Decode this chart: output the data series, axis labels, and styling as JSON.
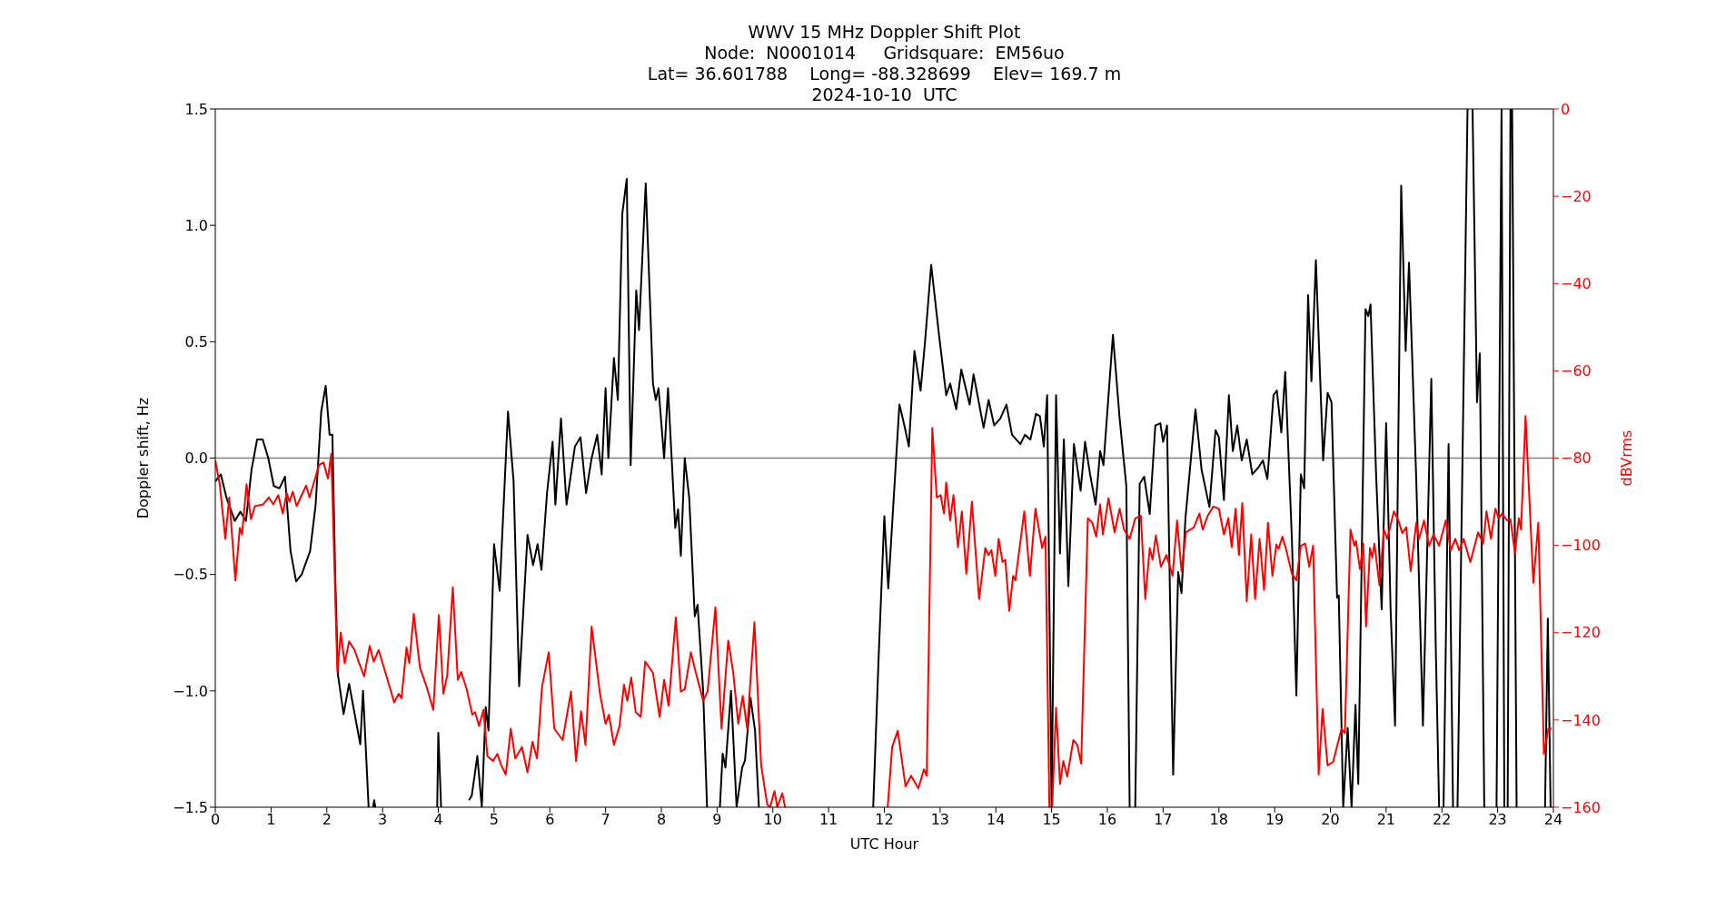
{
  "chart_data": {
    "type": "line",
    "title": "WWV 15 MHz Doppler Shift Plot",
    "subtitle": "Node:  N0001014     Gridsquare:  EM56uo\nLat= 36.601788    Long= -88.328699    Elev= 169.7 m\n2024-10-10  UTC",
    "xlabel": "UTC Hour",
    "ylabel": "Doppler shift, Hz",
    "y2label": "dBVrms",
    "xlim": [
      0,
      24
    ],
    "xticks": [
      0,
      1,
      2,
      3,
      4,
      5,
      6,
      7,
      8,
      9,
      10,
      11,
      12,
      13,
      14,
      15,
      16,
      17,
      18,
      19,
      20,
      21,
      22,
      23,
      24
    ],
    "ylim": [
      -1.5,
      1.5
    ],
    "yticks": [
      {
        "value": -1.5,
        "label": "−1.5"
      },
      {
        "value": -1.0,
        "label": "−1.0"
      },
      {
        "value": -0.5,
        "label": "−0.5"
      },
      {
        "value": 0,
        "label": "0.0"
      },
      {
        "value": 0.5,
        "label": "0.5"
      },
      {
        "value": 1.0,
        "label": "1.0"
      },
      {
        "value": 1.5,
        "label": "1.5"
      }
    ],
    "y2lim": [
      -160,
      0
    ],
    "y2ticks": [
      {
        "value": -160,
        "label": "−160"
      },
      {
        "value": -140,
        "label": "−140"
      },
      {
        "value": -120,
        "label": "−120"
      },
      {
        "value": -100,
        "label": "−100"
      },
      {
        "value": -80,
        "label": "−80"
      },
      {
        "value": -60,
        "label": "−60"
      },
      {
        "value": -40,
        "label": "−40"
      },
      {
        "value": -20,
        "label": "−20"
      },
      {
        "value": 0,
        "label": "0"
      }
    ],
    "ref_lines": [
      {
        "axis": "y",
        "value": 0,
        "color": "#808080"
      }
    ],
    "series": [
      {
        "color": "#000000",
        "x": [
          0,
          0.1,
          0.2,
          0.35,
          0.45,
          0.55,
          0.65,
          0.75,
          0.85,
          0.95,
          1.05,
          1.15,
          1.25,
          1.35,
          1.45,
          1.55,
          1.7,
          1.8,
          1.9,
          1.98,
          2.05,
          2.1,
          2.15,
          2.2,
          2.3,
          2.4,
          2.5,
          2.6,
          2.65,
          2.75,
          2.79,
          2.83,
          2.85,
          2.87,
          2.9,
          3.98,
          4.0,
          4.05,
          4.3,
          4.55,
          4.6,
          4.7,
          4.78,
          4.85,
          4.9,
          5.0,
          5.1,
          5.25,
          5.35,
          5.45,
          5.6,
          5.7,
          5.78,
          5.85,
          5.95,
          6.05,
          6.1,
          6.2,
          6.3,
          6.45,
          6.55,
          6.65,
          6.75,
          6.85,
          6.93,
          7.0,
          7.05,
          7.15,
          7.22,
          7.3,
          7.38,
          7.45,
          7.55,
          7.6,
          7.72,
          7.85,
          7.9,
          7.95,
          8.05,
          8.12,
          8.25,
          8.3,
          8.35,
          8.42,
          8.5,
          8.6,
          8.65,
          8.75,
          8.82,
          8.9,
          9.05,
          9.1,
          9.15,
          9.25,
          9.35,
          9.45,
          9.5,
          9.6,
          9.68,
          9.75,
          10.5,
          11.8,
          11.9,
          12.0,
          12.07,
          12.27,
          12.35,
          12.44,
          12.54,
          12.65,
          12.73,
          12.84,
          12.98,
          13.11,
          13.18,
          13.29,
          13.38,
          13.53,
          13.6,
          13.78,
          13.87,
          13.97,
          14.08,
          14.19,
          14.29,
          14.44,
          14.52,
          14.62,
          14.72,
          14.79,
          14.86,
          14.92,
          15.0,
          15.08,
          15.15,
          15.22,
          15.3,
          15.4,
          15.52,
          15.6,
          15.69,
          15.79,
          15.87,
          15.93,
          16.1,
          16.22,
          16.34,
          16.4,
          16.45,
          16.5,
          16.58,
          16.66,
          16.76,
          16.86,
          16.95,
          17.0,
          17.07,
          17.18,
          17.27,
          17.33,
          17.4,
          17.58,
          17.69,
          17.83,
          17.94,
          18.0,
          18.09,
          18.18,
          18.25,
          18.33,
          18.41,
          18.5,
          18.6,
          18.71,
          18.79,
          18.87,
          18.98,
          19.04,
          19.12,
          19.19,
          19.31,
          19.39,
          19.47,
          19.53,
          19.6,
          19.66,
          19.74,
          19.87,
          19.95,
          20.02,
          20.12,
          20.15,
          20.23,
          20.31,
          20.38,
          20.45,
          20.5,
          20.63,
          20.68,
          20.72,
          20.82,
          20.92,
          21.0,
          21.08,
          21.16,
          21.27,
          21.35,
          21.41,
          21.54,
          21.66,
          21.81,
          21.89,
          21.95,
          21.99,
          22.03,
          22.12,
          22.2,
          22.24,
          22.28,
          22.46,
          22.5,
          22.55,
          22.63,
          22.68,
          22.76,
          22.9,
          22.98,
          23.07,
          23.12,
          23.15,
          23.18,
          23.23,
          23.245,
          23.26,
          23.34,
          23.6,
          23.85,
          23.9,
          23.95
        ],
        "values": [
          -0.1,
          -0.07,
          -0.17,
          -0.27,
          -0.23,
          -0.27,
          -0.05,
          0.08,
          0.08,
          0.0,
          -0.12,
          -0.13,
          -0.08,
          -0.4,
          -0.53,
          -0.5,
          -0.4,
          -0.2,
          0.2,
          0.31,
          0.1,
          0.1,
          -0.5,
          -0.93,
          -1.1,
          -0.97,
          -1.1,
          -1.23,
          -1.0,
          -1.5,
          null,
          -1.5,
          -1.47,
          -1.5,
          null,
          -1.5,
          -1.18,
          -1.5,
          null,
          -1.47,
          -1.45,
          -1.28,
          -1.5,
          -1.07,
          -1.17,
          -0.37,
          -0.57,
          0.2,
          -0.1,
          -0.98,
          -0.33,
          -0.46,
          -0.37,
          -0.48,
          -0.15,
          0.07,
          -0.2,
          0.17,
          -0.2,
          0.05,
          0.09,
          -0.15,
          0.0,
          0.1,
          -0.07,
          0.3,
          0.0,
          0.43,
          0.25,
          1.05,
          1.2,
          -0.03,
          0.72,
          0.55,
          1.18,
          0.32,
          0.25,
          0.3,
          0.0,
          0.3,
          -0.3,
          -0.22,
          -0.42,
          0.0,
          -0.17,
          -0.68,
          -0.63,
          -1.0,
          -1.5,
          null,
          -1.5,
          -1.27,
          -1.33,
          -1.0,
          -1.5,
          -1.33,
          -1.3,
          -1.03,
          -1.17,
          -1.5,
          null,
          -1.5,
          -0.84,
          -0.25,
          -0.56,
          0.23,
          0.15,
          0.05,
          0.46,
          0.29,
          0.5,
          0.83,
          0.53,
          0.27,
          0.32,
          0.21,
          0.38,
          0.23,
          0.36,
          0.13,
          0.25,
          0.14,
          0.17,
          0.23,
          0.1,
          0.06,
          0.1,
          0.08,
          0.19,
          0.18,
          0.05,
          0.27,
          -1.5,
          0.27,
          -0.41,
          0.08,
          -0.55,
          0.06,
          -0.14,
          0.07,
          -0.07,
          -0.2,
          0.03,
          -0.03,
          0.53,
          0.17,
          -0.12,
          -1.5,
          null,
          -1.5,
          -0.11,
          -0.08,
          -0.24,
          0.14,
          0.15,
          0.07,
          0.14,
          -1.36,
          -0.49,
          -0.58,
          -0.26,
          0.21,
          -0.05,
          -0.21,
          0.12,
          0.09,
          -0.18,
          0.27,
          0.03,
          0.14,
          -0.01,
          0.08,
          -0.07,
          -0.04,
          -0.01,
          -0.09,
          0.27,
          0.29,
          0.11,
          0.37,
          -0.35,
          -1.02,
          -0.07,
          -0.13,
          0.7,
          0.33,
          0.85,
          -0.01,
          0.28,
          0.24,
          -0.6,
          -0.59,
          -1.5,
          -1.16,
          -1.5,
          -1.06,
          -1.4,
          0.64,
          0.61,
          0.66,
          -0.07,
          -0.65,
          0.15,
          -0.65,
          -1.15,
          1.17,
          0.46,
          0.84,
          -0.09,
          -1.15,
          0.34,
          -0.81,
          -1.5,
          null,
          -1.5,
          0.06,
          -1.5,
          null,
          -1.5,
          1.5,
          null,
          1.5,
          0.24,
          0.45,
          -1.5,
          null,
          -1.5,
          1.5,
          -1.5,
          null,
          -1.5,
          1.5,
          null,
          1.5,
          -1.5,
          null,
          -1.5,
          -0.69,
          -1.5
        ]
      },
      {
        "color": "#ff0000",
        "axis": "y2",
        "x": [
          0,
          0.08,
          0.18,
          0.25,
          0.36,
          0.44,
          0.48,
          0.56,
          0.64,
          0.71,
          0.86,
          0.96,
          1.04,
          1.13,
          1.21,
          1.28,
          1.33,
          1.39,
          1.46,
          1.53,
          1.63,
          1.69,
          1.86,
          1.94,
          2.02,
          2.08,
          2.19,
          2.25,
          2.32,
          2.4,
          2.5,
          2.58,
          2.67,
          2.77,
          2.84,
          2.93,
          3.04,
          3.21,
          3.29,
          3.34,
          3.43,
          3.48,
          3.56,
          3.67,
          3.79,
          3.91,
          4.01,
          4.09,
          4.16,
          4.26,
          4.35,
          4.41,
          4.51,
          4.61,
          4.66,
          4.73,
          4.81,
          4.88,
          4.98,
          5.06,
          5.13,
          5.21,
          5.3,
          5.38,
          5.5,
          5.6,
          5.69,
          5.77,
          5.86,
          5.98,
          6.08,
          6.23,
          6.38,
          6.47,
          6.56,
          6.64,
          6.75,
          6.9,
          7.0,
          7.06,
          7.15,
          7.25,
          7.33,
          7.39,
          7.46,
          7.54,
          7.63,
          7.71,
          7.85,
          7.97,
          8.05,
          8.13,
          8.26,
          8.35,
          8.42,
          8.53,
          8.6,
          8.75,
          8.83,
          8.97,
          9.08,
          9.2,
          9.29,
          9.38,
          9.46,
          9.54,
          9.67,
          9.79,
          9.9,
          9.95,
          10.03,
          10.08,
          10.17,
          10.22,
          11.0,
          12.06,
          12.14,
          12.24,
          12.38,
          12.48,
          12.61,
          12.71,
          12.76,
          12.86,
          12.94,
          13.01,
          13.07,
          13.11,
          13.18,
          13.24,
          13.32,
          13.39,
          13.47,
          13.57,
          13.7,
          13.81,
          13.87,
          13.92,
          13.99,
          14.05,
          14.12,
          14.17,
          14.24,
          14.31,
          14.35,
          14.51,
          14.61,
          14.71,
          14.83,
          14.89,
          14.96,
          15.01,
          15.08,
          15.15,
          15.21,
          15.28,
          15.39,
          15.46,
          15.53,
          15.65,
          15.73,
          15.8,
          15.87,
          15.92,
          16.02,
          16.13,
          16.22,
          16.3,
          16.4,
          16.5,
          16.6,
          16.68,
          16.76,
          16.81,
          16.87,
          16.96,
          17.06,
          17.17,
          17.25,
          17.33,
          17.41,
          17.55,
          17.65,
          17.71,
          17.8,
          17.9,
          18.0,
          18.09,
          18.17,
          18.23,
          18.3,
          18.36,
          18.42,
          18.5,
          18.58,
          18.65,
          18.73,
          18.81,
          18.88,
          18.96,
          19.03,
          19.07,
          19.14,
          19.21,
          19.31,
          19.39,
          19.47,
          19.55,
          19.62,
          19.69,
          19.79,
          19.86,
          19.95,
          20.05,
          20.2,
          20.26,
          20.36,
          20.43,
          20.46,
          20.53,
          20.59,
          20.64,
          20.71,
          20.75,
          20.79,
          20.88,
          20.96,
          21.02,
          21.14,
          21.22,
          21.29,
          21.36,
          21.44,
          21.54,
          21.59,
          21.68,
          21.77,
          21.85,
          21.95,
          22.07,
          22.16,
          22.24,
          22.31,
          22.39,
          22.51,
          22.65,
          22.74,
          22.8,
          22.88,
          22.96,
          23.02,
          23.08,
          23.17,
          23.23,
          23.31,
          23.38,
          23.42,
          23.5,
          23.64,
          23.73,
          23.83,
          23.91,
          23.97
        ],
        "values": [
          -80.5,
          -86,
          -98.5,
          -89,
          -108,
          -96,
          -97.5,
          -86,
          -94,
          -91,
          -90.6,
          -89,
          -90.6,
          -88.5,
          -92.7,
          -88,
          -90,
          -87.7,
          -91,
          -89,
          -86.3,
          -89,
          -81.6,
          -81,
          -84.7,
          -79,
          -129,
          -120,
          -127,
          -122,
          -124,
          -127,
          -130,
          -123,
          -126.6,
          -124,
          -128.7,
          -136,
          -134,
          -135,
          -123.4,
          -127,
          -115.7,
          -128,
          -132.4,
          -137.7,
          -116,
          -134,
          -129.8,
          -109.6,
          -130.8,
          -129,
          -133,
          -138.8,
          -138.2,
          -141.4,
          -137.7,
          -148.3,
          -149.4,
          -147.8,
          -150.4,
          -152.5,
          -142,
          -148.8,
          -146.2,
          -152,
          -145,
          -148.8,
          -132.4,
          -124.5,
          -142,
          -144.6,
          -133.5,
          -149.4,
          -138,
          -145.7,
          -118.6,
          -134,
          -140.9,
          -138.8,
          -145.7,
          -141.4,
          -131.9,
          -135.6,
          -130.3,
          -138.2,
          -139.3,
          -126.6,
          -129.2,
          -139.3,
          -130.8,
          -136.7,
          -116.5,
          -133.5,
          -133,
          -124.5,
          -128.2,
          -135.6,
          -133.5,
          -114.2,
          -142,
          -121.8,
          -129.2,
          -140.9,
          -134.5,
          -142,
          -117.6,
          -150.4,
          -159.4,
          -160,
          -156.3,
          -160,
          -156.8,
          -160,
          null,
          -160,
          -146.2,
          -142.5,
          -155.2,
          -152.8,
          -155.7,
          -151.3,
          -152.8,
          -73.1,
          -89,
          -88.5,
          -92.7,
          -85.6,
          -94.3,
          -88.5,
          -100.4,
          -92.2,
          -106.5,
          -90,
          -112.3,
          -100.6,
          -102.2,
          -101.1,
          -107,
          -98.5,
          -103.8,
          -103.3,
          -115,
          -107,
          -108,
          -92.2,
          -107,
          -91.6,
          -100.6,
          -98,
          -160,
          -160,
          -137.2,
          -154.7,
          -149.4,
          -153,
          -144.6,
          -145.7,
          -150,
          -93.8,
          -94.8,
          -98,
          -90.6,
          -97.5,
          -89.2,
          -97,
          -91.6,
          -96.4,
          -98.5,
          -93.8,
          -93.2,
          -112.3,
          -100.6,
          -103.3,
          -97.7,
          -104.9,
          -102.2,
          -107,
          -94.3,
          -105.9,
          -97,
          -95.9,
          -92.7,
          -96.4,
          -93.2,
          -91.1,
          -91.6,
          -97.5,
          -93.8,
          -100.4,
          -91.6,
          -102.2,
          -90.3,
          -112.8,
          -97.5,
          -112.3,
          -98.5,
          -110.2,
          -94.8,
          -107,
          -99.8,
          -100.8,
          -98,
          -101.1,
          -106.5,
          -108,
          -100.1,
          -99.6,
          -104.9,
          -100.1,
          -152.5,
          -137.5,
          -150.4,
          -149.6,
          -142,
          -143,
          -96.4,
          -100.1,
          -99,
          -105.4,
          -99.6,
          -118.6,
          -100.6,
          -102.8,
          -99.6,
          -109.1,
          -96.4,
          -98.5,
          -92.2,
          -94.3,
          -97.2,
          -95.9,
          -105.9,
          -94.8,
          -98.5,
          -94.3,
          -100.1,
          -97.5,
          -100.1,
          -94.3,
          -101.1,
          -98.5,
          -101.1,
          -98.5,
          -103.8,
          -97,
          -99.6,
          -92.2,
          -98.5,
          -91.6,
          -93.8,
          -92.7,
          -94.3,
          -94,
          -101.7,
          -93.8,
          -96.4,
          -70.4,
          -108.6,
          -94.8,
          -147.8,
          -142,
          -142
        ]
      }
    ]
  }
}
